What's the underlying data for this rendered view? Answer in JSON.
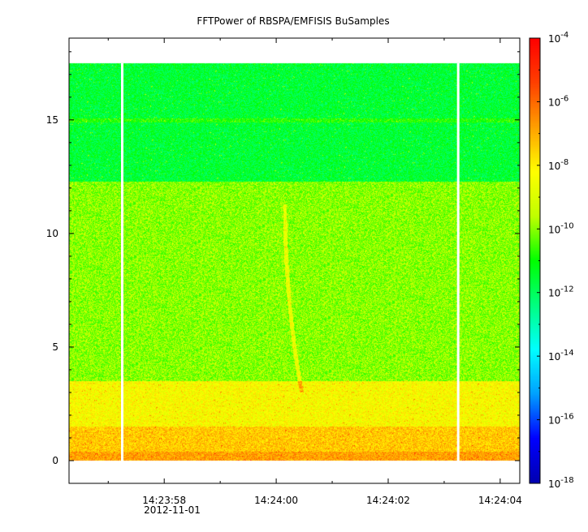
{
  "chart_data": {
    "type": "heatmap",
    "title": "FFTPower of RBSPA/EMFISIS  BuSamples",
    "xlabel": "",
    "ylabel": "",
    "x_start_seconds": 56.3,
    "x_end_seconds": 64.35,
    "xticks": [
      {
        "time": "14:23:58",
        "seconds": 58
      },
      {
        "time": "14:24:00",
        "seconds": 60
      },
      {
        "time": "14:24:02",
        "seconds": 62
      },
      {
        "time": "14:24:04",
        "seconds": 64
      }
    ],
    "x_minor_seconds": [
      57,
      59,
      61,
      63
    ],
    "date_label": "2012-11-01",
    "ylim": [
      -1,
      18.6
    ],
    "yticks": [
      0,
      5,
      10,
      15
    ],
    "data_ylim": [
      0,
      17.5
    ],
    "colorbar": {
      "scale": "log",
      "range": [
        "1e-18",
        "1e-4"
      ],
      "tick_bases": [
        "10",
        "10",
        "10",
        "10",
        "10",
        "10",
        "10",
        "10"
      ],
      "tick_exponents": [
        "-4",
        "-6",
        "-8",
        "-10",
        "-12",
        "-14",
        "-16",
        "-18"
      ],
      "colors": [
        "#0000b0",
        "#0000ff",
        "#00a0ff",
        "#00ffff",
        "#00ff80",
        "#00ff00",
        "#c0ff00",
        "#ffff00",
        "#ffa000",
        "#ff4000",
        "#ff0000"
      ]
    },
    "gaps_seconds": [
      57.25,
      63.25
    ],
    "bands": [
      {
        "freq_range": [
          0,
          0.4
        ],
        "log10_power": -6.8
      },
      {
        "freq_range": [
          0.4,
          1.5
        ],
        "log10_power": -7.4
      },
      {
        "freq_range": [
          1.5,
          3.5
        ],
        "log10_power": -8.3
      },
      {
        "freq_range": [
          3.5,
          12.3
        ],
        "log10_power": -10.0
      },
      {
        "freq_range": [
          12.3,
          17.5
        ],
        "log10_power": -11.6
      }
    ],
    "features": [
      {
        "name": "whistler",
        "x_seconds": [
          60.15,
          60.45
        ],
        "freq_range": [
          11.3,
          3.0
        ]
      },
      {
        "name": "line",
        "freq": 15.0
      }
    ]
  }
}
